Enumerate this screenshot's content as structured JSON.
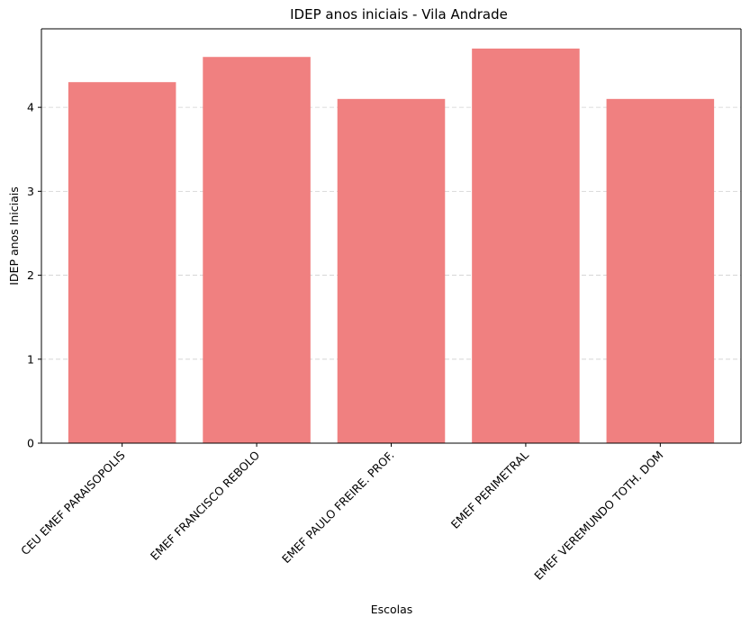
{
  "chart_data": {
    "type": "bar",
    "title": "IDEP anos iniciais - Vila Andrade",
    "xlabel": "Escolas",
    "ylabel": "IDEP anos Iniciais",
    "categories": [
      "CEU EMEF PARAISOPOLIS",
      "EMEF FRANCISCO REBOLO",
      "EMEF PAULO FREIRE. PROF.",
      "EMEF PERIMETRAL",
      "EMEF VEREMUNDO TOTH. DOM"
    ],
    "values": [
      4.3,
      4.6,
      4.1,
      4.7,
      4.1
    ],
    "ylim": [
      0,
      4.935
    ],
    "yticks": [
      "0",
      "1",
      "2",
      "3",
      "4"
    ],
    "grid": "y-axis dashed",
    "bar_color": "#f08080"
  }
}
